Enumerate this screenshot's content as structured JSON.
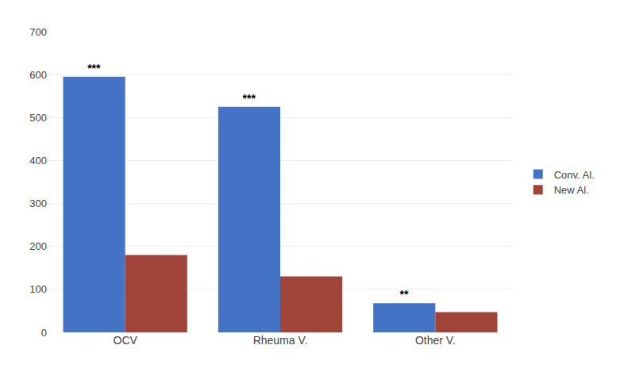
{
  "chart_data": {
    "type": "bar",
    "categories": [
      "OCV",
      "Rheuma V.",
      "Other V."
    ],
    "series": [
      {
        "name": "Conv. Al.",
        "color": "#4472C4",
        "values": [
          595,
          525,
          68
        ]
      },
      {
        "name": "New Al.",
        "color": "#A0443A",
        "values": [
          180,
          130,
          47
        ]
      }
    ],
    "annotations": [
      {
        "category": "OCV",
        "series": "Conv. Al.",
        "text": "***"
      },
      {
        "category": "Rheuma V.",
        "series": "Conv. Al.",
        "text": "***"
      },
      {
        "category": "Other V.",
        "series": "Conv. Al.",
        "text": "**"
      }
    ],
    "ylim": [
      0,
      700
    ],
    "yticks": [
      0,
      100,
      200,
      300,
      400,
      500,
      600,
      700
    ],
    "grid": true,
    "legend": "right"
  }
}
